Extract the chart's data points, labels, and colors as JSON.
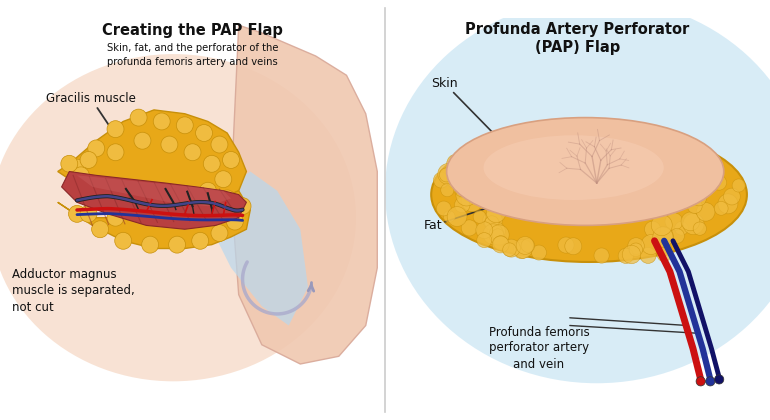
{
  "left_title": "Creating the PAP Flap",
  "left_subtitle": "Skin, fat, and the perforator of the\nprofunda femoris artery and veins",
  "left_labels": {
    "gracilis": "Gracilis muscle",
    "adductor": "Adductor magnus\nmuscle is separated,\nnot cut"
  },
  "right_title": "Profunda Artery Perforator\n(PAP) Flap",
  "right_labels": {
    "skin": "Skin",
    "fat": "Fat",
    "vessels": "Profunda femoris\nperforator artery\nand vein"
  },
  "bg_color": "#ffffff",
  "fat_color": "#e8a818",
  "fat_light": "#f0bc40",
  "fat_dark": "#c8900a",
  "skin_color": "#e8a888",
  "skin_light": "#f0c0a0",
  "muscle_color": "#b84040",
  "muscle_light": "#cc6060",
  "muscle_dark": "#8a2828",
  "vein_color": "#223399",
  "vein2_color": "#111166",
  "artery_color": "#cc1111",
  "nerve_color": "#111111",
  "thigh_color": "#f0c8b0",
  "thigh_edge": "#d8a898",
  "blue_gap": "#b8d8ee",
  "warm_glow": "#f0c0a0",
  "right_bg": "#b8ddf0",
  "divider_color": "#cccccc",
  "text_color": "#111111",
  "label_line_color": "#333333"
}
